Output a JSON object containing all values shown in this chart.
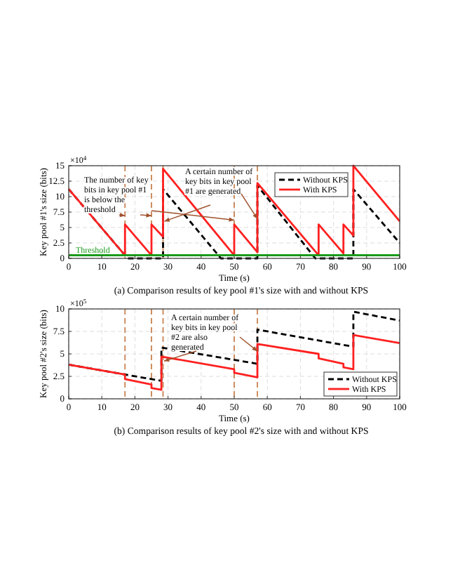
{
  "chart_data": [
    {
      "type": "line",
      "title": "(a) Comparison results of key pool #1's size with and without KPS",
      "xlabel": "Time (s)",
      "ylabel": "Key pool #1's size (bits)",
      "xlim": [
        0,
        100
      ],
      "xticks": [
        0,
        10,
        20,
        30,
        40,
        50,
        60,
        70,
        80,
        90,
        100
      ],
      "ylim": [
        0,
        15
      ],
      "yticks": [
        0,
        2.5,
        5,
        7.5,
        10,
        12.5,
        15
      ],
      "grid": true,
      "legend": "top right",
      "series": [
        {
          "name": "Without KPS",
          "color": "#000000",
          "line_style": "dashed",
          "x": [
            0,
            17.8,
            28.5,
            28.5,
            46,
            57,
            57,
            74.5,
            86,
            86,
            100
          ],
          "values": [
            11.2,
            0,
            0,
            11.2,
            0,
            0,
            11.8,
            0,
            0,
            11.2,
            2.5
          ]
        },
        {
          "name": "With KPS",
          "color": "#ff2020",
          "line_style": "solid",
          "x": [
            0,
            17,
            17,
            25,
            25,
            28.5,
            28.5,
            50,
            50,
            57,
            57,
            75.5,
            75.5,
            83,
            83,
            86,
            86,
            100
          ],
          "values": [
            11.2,
            0.5,
            5.5,
            0.5,
            5.5,
            3.5,
            14.5,
            0.5,
            5.5,
            1,
            12.2,
            0.5,
            5.5,
            0.8,
            5.5,
            3.7,
            15,
            6
          ]
        }
      ],
      "ref_lines": [
        {
          "axis": "y",
          "value": 0.5,
          "label": "Threshold",
          "color": "#1a9a1a",
          "line_style": "solid"
        },
        {
          "axis": "x",
          "value": 17,
          "color": "#c0703a",
          "line_style": "dashed"
        },
        {
          "axis": "x",
          "value": 25,
          "color": "#c0703a",
          "line_style": "dashed"
        },
        {
          "axis": "x",
          "value": 28.5,
          "color": "#c0703a",
          "line_style": "dashed"
        },
        {
          "axis": "x",
          "value": 50,
          "color": "#c0703a",
          "line_style": "dashed"
        },
        {
          "axis": "x",
          "value": 57,
          "color": "#c0703a",
          "line_style": "dashed"
        }
      ],
      "annotations": [
        "×10$^{4}$",
        {
          "text": "The number of key bits in key pool #1 is below the threshold",
          "x": 17,
          "y": 6.9
        },
        {
          "text": "A certain number of key bits in key pool #1 are generated",
          "x": 28.9,
          "y": 6.0
        }
      ]
    },
    {
      "type": "line",
      "title": "(b) Comparison results of key pool #2's size with and without KPS",
      "xlabel": "Time (s)",
      "ylabel": "Key pool #2's size (bits)",
      "xlim": [
        0,
        100
      ],
      "xticks": [
        0,
        10,
        20,
        30,
        40,
        50,
        60,
        70,
        80,
        90,
        100
      ],
      "ylim": [
        0,
        10
      ],
      "yticks": [
        0,
        2.5,
        5,
        7.5,
        10
      ],
      "grid": true,
      "legend": "bottom right",
      "series": [
        {
          "name": "Without KPS",
          "color": "#000000",
          "line_style": "dashed",
          "x": [
            0,
            17,
            28,
            28,
            57,
            57,
            86,
            86,
            100
          ],
          "values": [
            3.8,
            2.7,
            2.0,
            5.7,
            3.9,
            7.7,
            5.8,
            9.7,
            8.7
          ]
        },
        {
          "name": "With KPS",
          "color": "#ff2020",
          "line_style": "solid",
          "x": [
            0,
            17,
            17,
            25,
            25,
            28,
            28,
            50,
            50,
            57,
            57,
            75.5,
            75.5,
            83,
            83,
            86,
            86,
            100
          ],
          "values": [
            3.8,
            2.7,
            2.2,
            1.6,
            1.2,
            1.0,
            4.7,
            3.3,
            2.9,
            2.4,
            6.1,
            5.0,
            4.5,
            3.9,
            3.5,
            3.3,
            7.1,
            6.2
          ]
        }
      ],
      "ref_lines": [
        {
          "axis": "x",
          "value": 17,
          "color": "#c0703a",
          "line_style": "dashed"
        },
        {
          "axis": "x",
          "value": 25,
          "color": "#c0703a",
          "line_style": "dashed"
        },
        {
          "axis": "x",
          "value": 28.5,
          "color": "#c0703a",
          "line_style": "dashed"
        },
        {
          "axis": "x",
          "value": 50,
          "color": "#c0703a",
          "line_style": "dashed"
        },
        {
          "axis": "x",
          "value": 57,
          "color": "#c0703a",
          "line_style": "dashed"
        }
      ],
      "annotations": [
        "×10$^{5}$",
        {
          "text": "A certain number of key bits in key pool #2 are also generated",
          "x": 28.8,
          "y": 4.2
        }
      ]
    }
  ]
}
